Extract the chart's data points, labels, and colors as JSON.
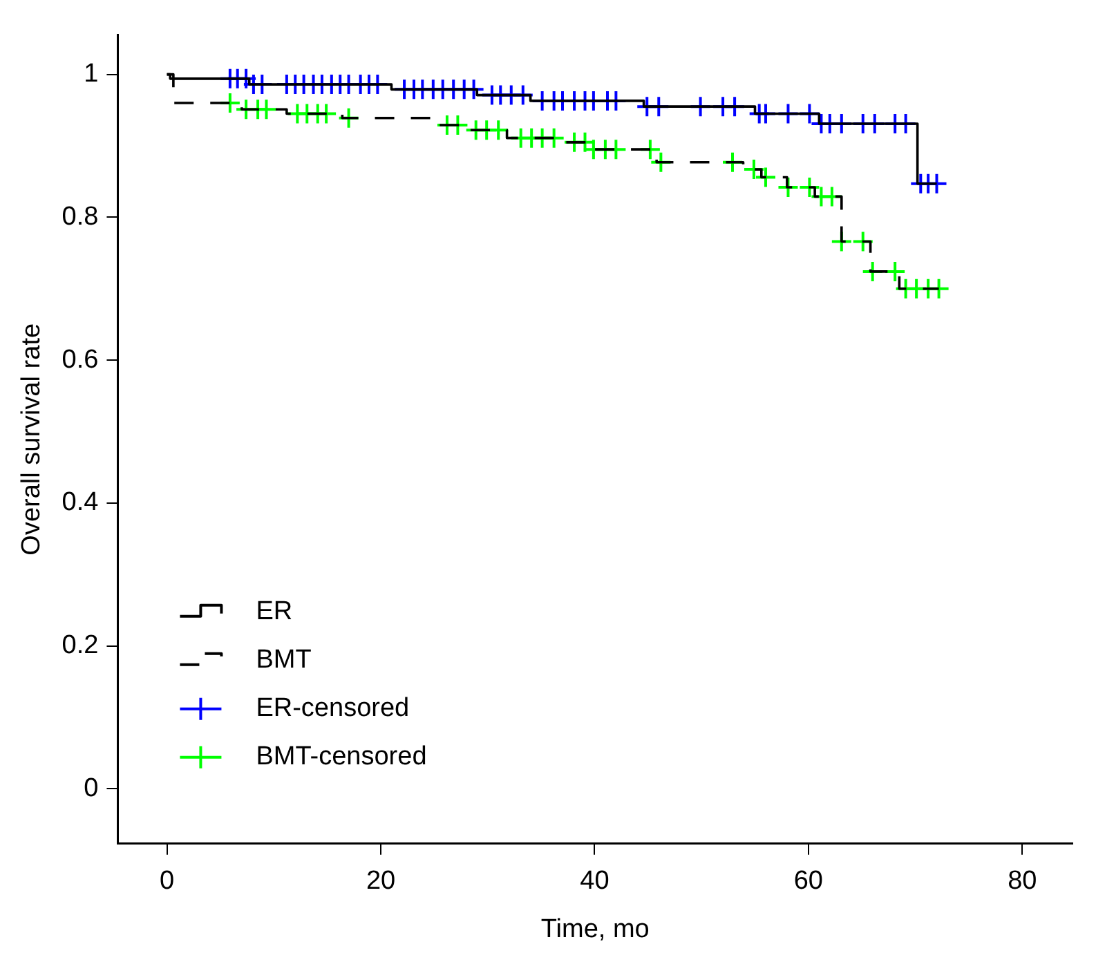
{
  "chart_data": {
    "type": "step",
    "xlabel": "Time, mo",
    "ylabel": "Overall survival rate",
    "xlim": [
      -4.6,
      84.7
    ],
    "ylim": [
      -0.077,
      1.055
    ],
    "xticks": [
      0,
      20,
      40,
      60,
      80
    ],
    "yticks": [
      0,
      0.2,
      0.4,
      0.6,
      0.8,
      1
    ],
    "grid": false,
    "legend": "bottom left",
    "series": [
      {
        "name": "ER",
        "color": "#000000",
        "line_style": "solid",
        "marker": "none",
        "x": [
          0,
          0.3,
          7.7,
          21,
          29,
          34,
          44.6,
          55,
          61,
          70.2,
          72
        ],
        "values": [
          1,
          0.994,
          0.986,
          0.979,
          0.971,
          0.963,
          0.955,
          0.945,
          0.931,
          0.847,
          0.847
        ]
      },
      {
        "name": "BMT",
        "color": "#000000",
        "line_style": "dashed",
        "marker": "none",
        "x": [
          0,
          0.6,
          7,
          11.2,
          16.4,
          25.1,
          28,
          31.8,
          37,
          39.5,
          45.8,
          53.9,
          55.6,
          58,
          60.6,
          63.1,
          65.8,
          68.5,
          72.2
        ],
        "values": [
          1,
          0.96,
          0.951,
          0.945,
          0.939,
          0.929,
          0.922,
          0.911,
          0.905,
          0.895,
          0.877,
          0.867,
          0.856,
          0.842,
          0.829,
          0.766,
          0.724,
          0.7,
          0.7
        ]
      },
      {
        "name": "ER-censored",
        "type": "scatter",
        "color": "#0000ff",
        "marker": "cross",
        "x": [
          5.9,
          6.6,
          7.4,
          8.1,
          8.9,
          11.2,
          12.0,
          12.8,
          13.7,
          14.5,
          15.4,
          16.2,
          17.0,
          18.1,
          18.9,
          19.7,
          22.2,
          23.1,
          23.9,
          24.9,
          25.8,
          26.8,
          27.8,
          28.7,
          30.4,
          31.2,
          32.2,
          33.3,
          35.1,
          36.2,
          37.0,
          38.1,
          39.1,
          39.9,
          41.2,
          42.0,
          44.9,
          46.0,
          49.9,
          52.0,
          53.1,
          55.4,
          56.0,
          58.1,
          60.1,
          61.2,
          62.0,
          63.1,
          65.1,
          66.2,
          68.1,
          69.1,
          70.5,
          71.2,
          72.0
        ],
        "values": [
          0.994,
          0.994,
          0.994,
          0.986,
          0.986,
          0.986,
          0.986,
          0.986,
          0.986,
          0.986,
          0.986,
          0.986,
          0.986,
          0.986,
          0.986,
          0.986,
          0.979,
          0.979,
          0.979,
          0.979,
          0.979,
          0.979,
          0.979,
          0.979,
          0.971,
          0.971,
          0.971,
          0.971,
          0.963,
          0.963,
          0.963,
          0.963,
          0.963,
          0.963,
          0.963,
          0.963,
          0.955,
          0.955,
          0.955,
          0.955,
          0.955,
          0.945,
          0.945,
          0.945,
          0.945,
          0.931,
          0.931,
          0.931,
          0.931,
          0.931,
          0.931,
          0.931,
          0.847,
          0.847,
          0.847
        ]
      },
      {
        "name": "BMT-censored",
        "type": "scatter",
        "color": "#00ff00",
        "marker": "cross",
        "x": [
          5.9,
          7.4,
          8.5,
          9.3,
          12.2,
          13.1,
          14.1,
          14.9,
          17.0,
          26.2,
          27.2,
          28.9,
          29.9,
          31.0,
          33.1,
          34.1,
          35.1,
          36.2,
          38.1,
          39.1,
          39.9,
          41.0,
          42.0,
          45.2,
          46.2,
          52.9,
          54.9,
          56.0,
          58.1,
          60.1,
          61.2,
          62.2,
          63.1,
          65.1,
          66.0,
          68.1,
          69.1,
          70.1,
          71.2,
          72.2
        ],
        "values": [
          0.96,
          0.951,
          0.951,
          0.951,
          0.945,
          0.945,
          0.945,
          0.945,
          0.939,
          0.929,
          0.929,
          0.922,
          0.922,
          0.922,
          0.911,
          0.911,
          0.911,
          0.911,
          0.905,
          0.905,
          0.895,
          0.895,
          0.895,
          0.895,
          0.877,
          0.877,
          0.867,
          0.856,
          0.842,
          0.842,
          0.829,
          0.829,
          0.766,
          0.766,
          0.724,
          0.724,
          0.7,
          0.7,
          0.7,
          0.7
        ]
      }
    ]
  }
}
